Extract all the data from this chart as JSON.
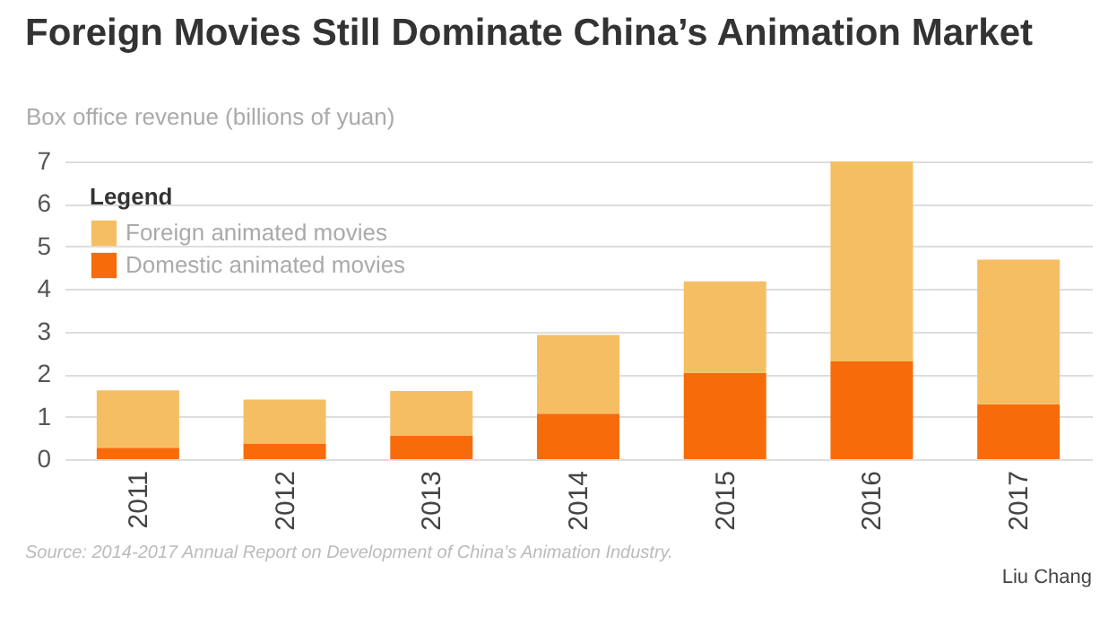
{
  "chart_data": {
    "type": "bar",
    "title": "Foreign Movies Still Dominate China’s Animation Market",
    "ylabel": "Box office revenue (billions of yuan)",
    "legend_title": "Legend",
    "categories": [
      "2011",
      "2012",
      "2013",
      "2014",
      "2015",
      "2016",
      "2017"
    ],
    "stacked": true,
    "series": [
      {
        "name": "Domestic animated movies",
        "color": "#f76b0a",
        "values": [
          0.27,
          0.37,
          0.55,
          1.07,
          2.03,
          2.3,
          1.29
        ]
      },
      {
        "name": "Foreign animated movies",
        "color": "#f6be63",
        "values": [
          1.35,
          1.03,
          1.05,
          1.85,
          2.15,
          4.7,
          3.4
        ]
      }
    ],
    "ylim": [
      0,
      7
    ],
    "yticks": [
      0,
      1,
      2,
      3,
      4,
      5,
      6,
      7
    ],
    "grid": "y",
    "legend": "top left",
    "annotations": [
      "Source: 2014-2017 Annual Report on Development of China’s Animation Industry.",
      "Liu Chang"
    ]
  }
}
